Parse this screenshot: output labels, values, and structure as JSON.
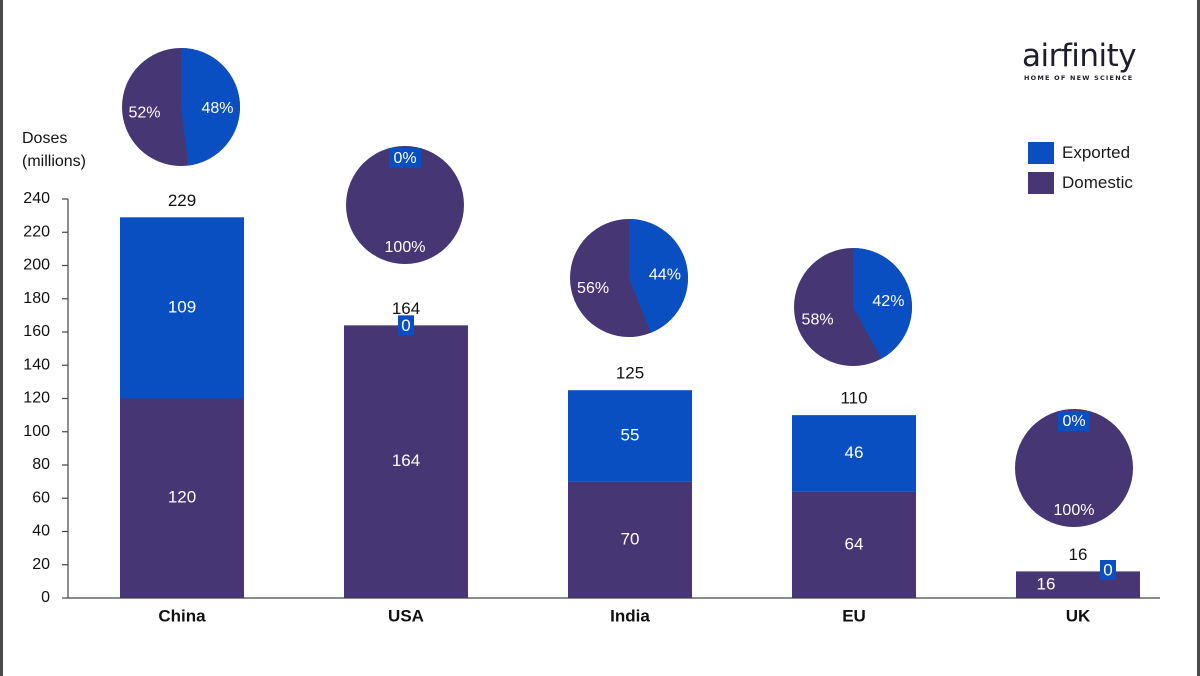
{
  "colors": {
    "exported": "#0a4fc2",
    "domestic": "#463673",
    "axis": "#444444",
    "text": "#111111",
    "frame": "#4a4a4a"
  },
  "logo": {
    "name": "airfinity",
    "tagline": "HOME OF NEW SCIENCE"
  },
  "legend": [
    {
      "label": "Exported",
      "color": "#0a4fc2"
    },
    {
      "label": "Domestic",
      "color": "#463673"
    }
  ],
  "chart_data": {
    "type": "bar",
    "stacked": true,
    "ylabel_line1": "Doses",
    "ylabel_line2": "(millions)",
    "ylim": [
      0,
      240
    ],
    "yticks": [
      0,
      20,
      40,
      60,
      80,
      100,
      120,
      140,
      160,
      180,
      200,
      220,
      240
    ],
    "categories": [
      "China",
      "USA",
      "India",
      "EU",
      "UK"
    ],
    "series": [
      {
        "name": "Domestic",
        "values": [
          120,
          164,
          70,
          64,
          16
        ]
      },
      {
        "name": "Exported",
        "values": [
          109,
          0,
          55,
          46,
          0
        ]
      }
    ],
    "totals": [
      229,
      164,
      125,
      110,
      16
    ],
    "pies": [
      {
        "category": "China",
        "exported_pct": 48,
        "domestic_pct": 52,
        "exported_label": "48%",
        "domestic_label": "52%"
      },
      {
        "category": "USA",
        "exported_pct": 0,
        "domestic_pct": 100,
        "exported_label": "0%",
        "domestic_label": "100%"
      },
      {
        "category": "India",
        "exported_pct": 44,
        "domestic_pct": 56,
        "exported_label": "44%",
        "domestic_label": "56%"
      },
      {
        "category": "EU",
        "exported_pct": 42,
        "domestic_pct": 58,
        "exported_label": "42%",
        "domestic_label": "58%"
      },
      {
        "category": "UK",
        "exported_pct": 0,
        "domestic_pct": 100,
        "exported_label": "0%",
        "domestic_label": "100%"
      }
    ]
  }
}
